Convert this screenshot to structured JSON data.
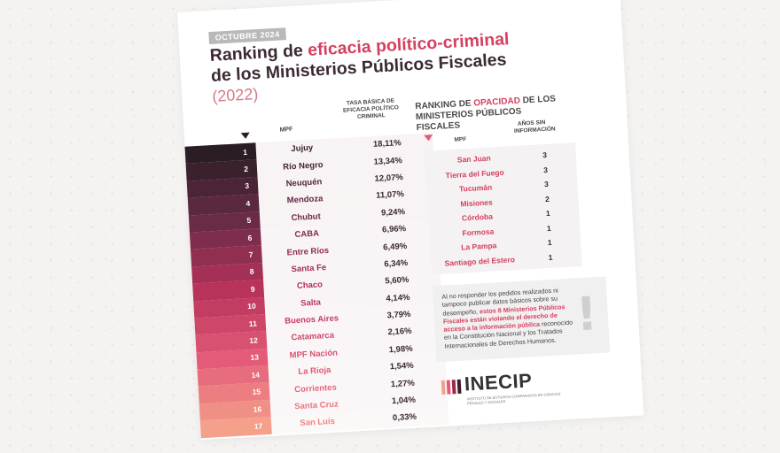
{
  "header": {
    "date": "OCTUBRE 2024",
    "title_part1": "Ranking de ",
    "title_part2": "eficacia político-criminal",
    "title_line2": "de los Ministerios Públicos Fiscales",
    "year": "(2022)"
  },
  "ranking": {
    "col_mpf": "MPF",
    "col_tasa": "TASA BÁSICA DE EFICACIA POLÍTICO CRIMINAL",
    "rows": [
      {
        "rank": "1",
        "name": "Jujuy",
        "value": "18,11%"
      },
      {
        "rank": "2",
        "name": "Río Negro",
        "value": "13,34%"
      },
      {
        "rank": "3",
        "name": "Neuquén",
        "value": "12,07%"
      },
      {
        "rank": "4",
        "name": "Mendoza",
        "value": "11,07%"
      },
      {
        "rank": "5",
        "name": "Chubut",
        "value": "9,24%"
      },
      {
        "rank": "6",
        "name": "CABA",
        "value": "6,96%"
      },
      {
        "rank": "7",
        "name": "Entre Ríos",
        "value": "6,49%"
      },
      {
        "rank": "8",
        "name": "Santa Fe",
        "value": "6,34%"
      },
      {
        "rank": "9",
        "name": "Chaco",
        "value": "5,60%"
      },
      {
        "rank": "10",
        "name": "Salta",
        "value": "4,14%"
      },
      {
        "rank": "11",
        "name": "Buenos Aires",
        "value": "3,79%"
      },
      {
        "rank": "12",
        "name": "Catamarca",
        "value": "2,16%"
      },
      {
        "rank": "13",
        "name": "MPF Nación",
        "value": "1,98%"
      },
      {
        "rank": "14",
        "name": "La Rioja",
        "value": "1,54%"
      },
      {
        "rank": "15",
        "name": "Corrientes",
        "value": "1,27%"
      },
      {
        "rank": "16",
        "name": "Santa Cruz",
        "value": "1,04%"
      },
      {
        "rank": "17",
        "name": "San Luis",
        "value": "0,33%"
      }
    ]
  },
  "opacity": {
    "title_part1": "RANKING DE ",
    "title_accent": "OPACIDAD",
    "title_part2": " DE LOS MINISTERIOS PÚBLICOS FISCALES",
    "col_mpf": "MPF",
    "col_anios": "AÑOS SIN INFORMACIÓN",
    "rows": [
      {
        "name": "San Juan",
        "value": "3"
      },
      {
        "name": "Tierra del Fuego",
        "value": "3"
      },
      {
        "name": "Tucumán",
        "value": "3"
      },
      {
        "name": "Misiones",
        "value": "2"
      },
      {
        "name": "Córdoba",
        "value": "1"
      },
      {
        "name": "Formosa",
        "value": "1"
      },
      {
        "name": "La Pampa",
        "value": "1"
      },
      {
        "name": "Santiago del Estero",
        "value": "1"
      }
    ]
  },
  "note": {
    "text1": "Al no responder los pedidos realizados ni tampoco publicar datos básicos sobre su desempeño, ",
    "bold": "estos 8 Ministerios Públicos Fiscales están violando el derecho de acceso a la información pública",
    "text2": " reconocido en la Constitución Nacional y los Tratados Internacionales de Derechos Humanos.",
    "icon": "exclamation-icon"
  },
  "logo": {
    "word": "INECIP",
    "subtitle": "INSTITUTO DE ESTUDIOS COMPARADOS EN CIENCIAS PENALES Y SOCIALES"
  },
  "colors": {
    "accent": "#d5405f",
    "dark": "#2b1d26"
  }
}
